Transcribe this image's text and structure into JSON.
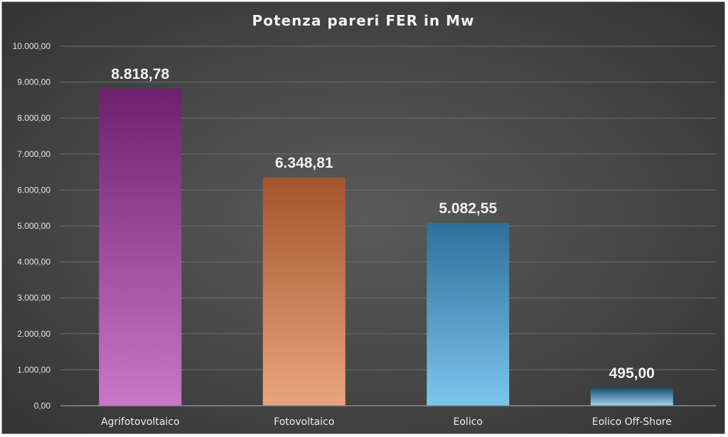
{
  "chart_data": {
    "type": "bar",
    "title": "Potenza pareri FER in Mw",
    "categories": [
      "Agrifotovoltaico",
      "Fotovoltaico",
      "Eolico",
      "Eolico Off-Shore"
    ],
    "values": [
      8818.78,
      6348.81,
      5082.55,
      495.0
    ],
    "data_labels": [
      "8.818,78",
      "6.348,81",
      "5.082,55",
      "495,00"
    ],
    "y_ticks": [
      0,
      1000,
      2000,
      3000,
      4000,
      5000,
      6000,
      7000,
      8000,
      9000,
      10000
    ],
    "y_tick_labels": [
      "0,00",
      "1.000,00",
      "2.000,00",
      "3.000,00",
      "4.000,00",
      "5.000,00",
      "6.000,00",
      "7.000,00",
      "8.000,00",
      "9.000,00",
      "10.000,00"
    ],
    "ylim": [
      0,
      10000
    ],
    "grid": true,
    "legend": "none",
    "colors": [
      {
        "top": "#6e1f6e",
        "bottom": "#c978c9"
      },
      {
        "top": "#a4542a",
        "bottom": "#e9a57f"
      },
      {
        "top": "#2e6f9a",
        "bottom": "#7cc6ee"
      },
      {
        "top": "#1b4d6e",
        "bottom": "#9fd3f0"
      }
    ]
  }
}
